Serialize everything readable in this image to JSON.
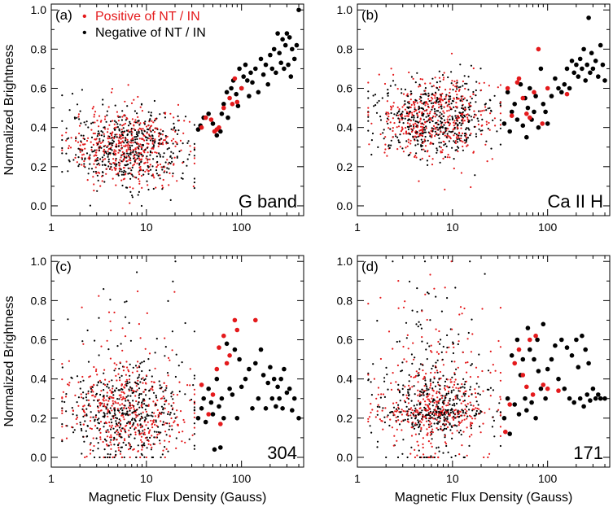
{
  "chart_data": [
    {
      "type": "scatter",
      "panel_label": "(a)",
      "name_label": "G band",
      "xlabel": "",
      "ylabel": "Normalized Brightness",
      "xscale": "log",
      "xlim": [
        1,
        450
      ],
      "ylim": [
        -0.05,
        1.03
      ],
      "xtick_labels": [
        "1",
        "10",
        "100"
      ],
      "ytick_labels": [
        "0.0",
        "0.2",
        "0.4",
        "0.6",
        "0.8",
        "1.0"
      ],
      "legend": {
        "placement": "top-left",
        "entries": [
          {
            "marker": "•",
            "text": "Positive of NT / IN",
            "color": "#e41a1c"
          },
          {
            "marker": "•",
            "text": "Negative of NT / IN",
            "color": "#000000"
          }
        ]
      },
      "series": [
        {
          "name": "Positive of NT / IN",
          "color": "#e41a1c",
          "points": [
            [
              38,
              0.4
            ],
            [
              42,
              0.45
            ],
            [
              48,
              0.44
            ],
            [
              52,
              0.38
            ],
            [
              55,
              0.39
            ],
            [
              58,
              0.4
            ],
            [
              65,
              0.5
            ],
            [
              75,
              0.55
            ],
            [
              80,
              0.52
            ],
            [
              85,
              0.65
            ],
            [
              90,
              0.53
            ],
            [
              100,
              0.6
            ]
          ]
        },
        {
          "name": "Negative of NT / IN",
          "color": "#000000",
          "points": [
            [
              35,
              0.39
            ],
            [
              37,
              0.41
            ],
            [
              40,
              0.45
            ],
            [
              45,
              0.47
            ],
            [
              50,
              0.42
            ],
            [
              55,
              0.36
            ],
            [
              60,
              0.38
            ],
            [
              62,
              0.47
            ],
            [
              65,
              0.52
            ],
            [
              70,
              0.58
            ],
            [
              72,
              0.45
            ],
            [
              78,
              0.6
            ],
            [
              82,
              0.64
            ],
            [
              88,
              0.57
            ],
            [
              92,
              0.51
            ],
            [
              95,
              0.7
            ],
            [
              100,
              0.6
            ],
            [
              105,
              0.66
            ],
            [
              110,
              0.72
            ],
            [
              115,
              0.64
            ],
            [
              120,
              0.56
            ],
            [
              125,
              0.68
            ],
            [
              130,
              0.63
            ],
            [
              140,
              0.7
            ],
            [
              150,
              0.58
            ],
            [
              160,
              0.75
            ],
            [
              170,
              0.67
            ],
            [
              180,
              0.72
            ],
            [
              190,
              0.62
            ],
            [
              200,
              0.77
            ],
            [
              210,
              0.7
            ],
            [
              220,
              0.8
            ],
            [
              230,
              0.68
            ],
            [
              240,
              0.88
            ],
            [
              250,
              0.78
            ],
            [
              260,
              0.73
            ],
            [
              270,
              0.85
            ],
            [
              280,
              0.7
            ],
            [
              290,
              0.82
            ],
            [
              300,
              0.88
            ],
            [
              310,
              0.72
            ],
            [
              320,
              0.86
            ],
            [
              330,
              0.66
            ],
            [
              340,
              0.8
            ],
            [
              360,
              0.75
            ],
            [
              380,
              0.82
            ],
            [
              400,
              1.0
            ]
          ]
        }
      ],
      "small_dots": {
        "description_hidden": true,
        "x_range": [
          1.3,
          32
        ],
        "y_center": 0.3,
        "y_spread": 0.1,
        "count_each": 450
      }
    },
    {
      "type": "scatter",
      "panel_label": "(b)",
      "name_label": "Ca II H",
      "xlabel": "",
      "ylabel": "",
      "xscale": "log",
      "xlim": [
        1,
        450
      ],
      "ylim": [
        -0.05,
        1.03
      ],
      "xtick_labels": [
        "1",
        "10",
        "100"
      ],
      "ytick_labels": [
        "0.0",
        "0.2",
        "0.4",
        "0.6",
        "0.8",
        "1.0"
      ],
      "series": [
        {
          "name": "Positive of NT / IN",
          "color": "#e41a1c",
          "points": [
            [
              38,
              0.6
            ],
            [
              42,
              0.46
            ],
            [
              48,
              0.63
            ],
            [
              50,
              0.65
            ],
            [
              55,
              0.55
            ],
            [
              60,
              0.47
            ],
            [
              65,
              0.45
            ],
            [
              72,
              0.58
            ],
            [
              80,
              0.8
            ],
            [
              88,
              0.42
            ],
            [
              100,
              0.6
            ],
            [
              160,
              0.57
            ]
          ]
        },
        {
          "name": "Negative of NT / IN",
          "color": "#000000",
          "points": [
            [
              35,
              0.42
            ],
            [
              38,
              0.58
            ],
            [
              40,
              0.38
            ],
            [
              42,
              0.48
            ],
            [
              45,
              0.52
            ],
            [
              48,
              0.44
            ],
            [
              52,
              0.62
            ],
            [
              55,
              0.41
            ],
            [
              58,
              0.55
            ],
            [
              60,
              0.35
            ],
            [
              62,
              0.5
            ],
            [
              65,
              0.6
            ],
            [
              68,
              0.44
            ],
            [
              72,
              0.48
            ],
            [
              75,
              0.56
            ],
            [
              80,
              0.4
            ],
            [
              85,
              0.7
            ],
            [
              90,
              0.52
            ],
            [
              95,
              0.48
            ],
            [
              100,
              0.42
            ],
            [
              110,
              0.56
            ],
            [
              120,
              0.65
            ],
            [
              130,
              0.6
            ],
            [
              140,
              0.58
            ],
            [
              150,
              0.62
            ],
            [
              160,
              0.7
            ],
            [
              170,
              0.6
            ],
            [
              180,
              0.74
            ],
            [
              190,
              0.68
            ],
            [
              200,
              0.72
            ],
            [
              210,
              0.66
            ],
            [
              220,
              0.75
            ],
            [
              230,
              0.7
            ],
            [
              240,
              0.8
            ],
            [
              250,
              0.64
            ],
            [
              260,
              0.72
            ],
            [
              270,
              0.96
            ],
            [
              280,
              0.68
            ],
            [
              290,
              0.78
            ],
            [
              300,
              0.7
            ],
            [
              320,
              0.74
            ],
            [
              340,
              0.66
            ],
            [
              360,
              0.82
            ],
            [
              380,
              0.72
            ],
            [
              400,
              0.64
            ]
          ]
        }
      ],
      "small_dots": {
        "description_hidden": true,
        "x_range": [
          1.3,
          32
        ],
        "y_center": 0.45,
        "y_spread": 0.1,
        "count_each": 450
      }
    },
    {
      "type": "scatter",
      "panel_label": "(c)",
      "name_label": "304",
      "xlabel": "Magnetic Flux Density (Gauss)",
      "ylabel": "Normalized Brightness",
      "xscale": "log",
      "xlim": [
        1,
        450
      ],
      "ylim": [
        -0.05,
        1.03
      ],
      "xtick_labels": [
        "1",
        "10",
        "100"
      ],
      "ytick_labels": [
        "0.0",
        "0.2",
        "0.4",
        "0.6",
        "0.8",
        "1.0"
      ],
      "series": [
        {
          "name": "Positive of NT / IN",
          "color": "#e41a1c",
          "points": [
            [
              38,
              0.37
            ],
            [
              45,
              0.22
            ],
            [
              50,
              0.32
            ],
            [
              55,
              0.45
            ],
            [
              58,
              0.56
            ],
            [
              60,
              0.17
            ],
            [
              65,
              0.62
            ],
            [
              70,
              0.48
            ],
            [
              75,
              0.52
            ],
            [
              85,
              0.7
            ],
            [
              90,
              0.65
            ],
            [
              140,
              0.7
            ]
          ]
        },
        {
          "name": "Negative of NT / IN",
          "color": "#000000",
          "points": [
            [
              35,
              0.2
            ],
            [
              38,
              0.25
            ],
            [
              40,
              0.3
            ],
            [
              42,
              0.18
            ],
            [
              45,
              0.35
            ],
            [
              48,
              0.28
            ],
            [
              50,
              0.22
            ],
            [
              52,
              0.04
            ],
            [
              55,
              0.4
            ],
            [
              58,
              0.26
            ],
            [
              60,
              0.05
            ],
            [
              62,
              0.3
            ],
            [
              65,
              0.2
            ],
            [
              70,
              0.58
            ],
            [
              75,
              0.35
            ],
            [
              80,
              0.32
            ],
            [
              85,
              0.55
            ],
            [
              90,
              0.2
            ],
            [
              95,
              0.5
            ],
            [
              100,
              0.36
            ],
            [
              110,
              0.4
            ],
            [
              120,
              0.45
            ],
            [
              130,
              0.25
            ],
            [
              140,
              0.48
            ],
            [
              150,
              0.3
            ],
            [
              160,
              0.55
            ],
            [
              170,
              0.42
            ],
            [
              180,
              0.25
            ],
            [
              190,
              0.38
            ],
            [
              200,
              0.46
            ],
            [
              210,
              0.3
            ],
            [
              220,
              0.4
            ],
            [
              230,
              0.26
            ],
            [
              240,
              0.36
            ],
            [
              250,
              0.3
            ],
            [
              260,
              0.4
            ],
            [
              270,
              0.25
            ],
            [
              280,
              0.45
            ],
            [
              300,
              0.33
            ],
            [
              320,
              0.35
            ],
            [
              340,
              0.24
            ],
            [
              360,
              0.3
            ],
            [
              400,
              0.2
            ]
          ]
        }
      ],
      "small_dots": {
        "description_hidden": true,
        "x_range": [
          1.3,
          32
        ],
        "y_center": 0.22,
        "y_spread": 0.12,
        "count_each": 450
      }
    },
    {
      "type": "scatter",
      "panel_label": "(d)",
      "name_label": "171",
      "xlabel": "Magnetic Flux Density (Gauss)",
      "ylabel": "",
      "xscale": "log",
      "xlim": [
        1,
        450
      ],
      "ylim": [
        -0.05,
        1.03
      ],
      "xtick_labels": [
        "1",
        "10",
        "100"
      ],
      "ytick_labels": [
        "0.0",
        "0.2",
        "0.4",
        "0.6",
        "0.8",
        "1.0"
      ],
      "series": [
        {
          "name": "Positive of NT / IN",
          "color": "#e41a1c",
          "points": [
            [
              36,
              0.13
            ],
            [
              40,
              0.27
            ],
            [
              45,
              0.48
            ],
            [
              50,
              0.55
            ],
            [
              55,
              0.42
            ],
            [
              60,
              0.36
            ],
            [
              65,
              0.6
            ],
            [
              70,
              0.32
            ],
            [
              75,
              0.62
            ],
            [
              90,
              0.37
            ],
            [
              100,
              0.35
            ],
            [
              130,
              0.34
            ]
          ]
        },
        {
          "name": "Negative of NT / IN",
          "color": "#000000",
          "points": [
            [
              35,
              0.2
            ],
            [
              38,
              0.3
            ],
            [
              40,
              0.12
            ],
            [
              42,
              0.52
            ],
            [
              45,
              0.27
            ],
            [
              48,
              0.6
            ],
            [
              50,
              0.22
            ],
            [
              52,
              0.42
            ],
            [
              55,
              0.5
            ],
            [
              58,
              0.3
            ],
            [
              60,
              0.24
            ],
            [
              62,
              0.66
            ],
            [
              65,
              0.55
            ],
            [
              68,
              0.28
            ],
            [
              72,
              0.5
            ],
            [
              75,
              0.2
            ],
            [
              78,
              0.6
            ],
            [
              80,
              0.44
            ],
            [
              85,
              0.35
            ],
            [
              90,
              0.68
            ],
            [
              95,
              0.3
            ],
            [
              100,
              0.45
            ],
            [
              110,
              0.5
            ],
            [
              120,
              0.57
            ],
            [
              130,
              0.4
            ],
            [
              140,
              0.6
            ],
            [
              150,
              0.35
            ],
            [
              160,
              0.56
            ],
            [
              170,
              0.3
            ],
            [
              180,
              0.52
            ],
            [
              190,
              0.28
            ],
            [
              200,
              0.6
            ],
            [
              210,
              0.46
            ],
            [
              220,
              0.3
            ],
            [
              230,
              0.62
            ],
            [
              240,
              0.26
            ],
            [
              250,
              0.55
            ],
            [
              260,
              0.32
            ],
            [
              270,
              0.48
            ],
            [
              280,
              0.29
            ],
            [
              300,
              0.35
            ],
            [
              320,
              0.3
            ],
            [
              340,
              0.32
            ],
            [
              360,
              0.3
            ],
            [
              400,
              0.3
            ]
          ]
        }
      ],
      "small_dots": {
        "description_hidden": true,
        "x_range": [
          1.3,
          32
        ],
        "y_center": 0.25,
        "y_spread": 0.18,
        "count_each": 450
      }
    }
  ],
  "colors": {
    "positive": "#e41a1c",
    "negative": "#000000",
    "axes": "#000000"
  }
}
